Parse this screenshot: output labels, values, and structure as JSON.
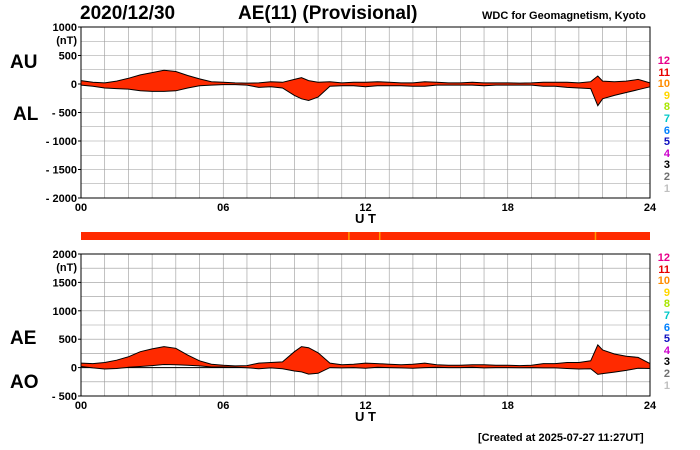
{
  "header": {
    "date": "2020/12/30",
    "title": "AE(11) (Provisional)",
    "source": "WDC for Geomagnetism, Kyoto"
  },
  "footer": {
    "created": "[Created at 2025-07-27 11:27UT]"
  },
  "panel_labels": {
    "top_upper": "AU",
    "top_lower": "AL",
    "bottom_upper": "AE",
    "bottom_lower": "AO"
  },
  "legend": {
    "labels": [
      "12",
      "11",
      "10",
      "9",
      "8",
      "7",
      "6",
      "5",
      "4",
      "3",
      "2",
      "1"
    ],
    "colors": [
      "#e8008a",
      "#e80000",
      "#ff8c00",
      "#ffd700",
      "#a8e600",
      "#00c8c8",
      "#0080ff",
      "#1010c0",
      "#cc00cc",
      "#000000",
      "#707070",
      "#c0c0c0"
    ]
  },
  "colors": {
    "fill": "#ff2a00",
    "outline": "#000000",
    "grid": "#999999",
    "status_marker": "#ff9900"
  },
  "chart_data": [
    {
      "type": "area",
      "panel": "AU/AL",
      "unit_label": "(nT)",
      "xlabel": "U T",
      "xticks": [
        "00",
        "06",
        "12",
        "18",
        "24"
      ],
      "xlim": [
        0,
        24
      ],
      "ylim": [
        -2000,
        1000
      ],
      "yticks": [
        "1000",
        "500",
        "0",
        "- 500",
        "- 1000",
        "- 1500",
        "- 2000"
      ],
      "grid": true,
      "hours": [
        0,
        0.5,
        1,
        1.5,
        2,
        2.5,
        3,
        3.5,
        4,
        4.5,
        5,
        5.5,
        6,
        6.5,
        7,
        7.5,
        8,
        8.5,
        9,
        9.3,
        9.6,
        10,
        10.5,
        11,
        11.5,
        12,
        12.5,
        13,
        13.5,
        14,
        14.5,
        15,
        15.5,
        16,
        16.5,
        17,
        17.5,
        18,
        18.5,
        19,
        19.5,
        20,
        20.5,
        21,
        21.5,
        21.8,
        22,
        22.5,
        23,
        23.5,
        24
      ],
      "series": [
        {
          "name": "AU",
          "values": [
            60,
            30,
            20,
            50,
            100,
            160,
            200,
            240,
            220,
            150,
            90,
            40,
            30,
            20,
            15,
            20,
            40,
            30,
            80,
            110,
            60,
            30,
            40,
            20,
            30,
            30,
            40,
            30,
            20,
            20,
            40,
            30,
            20,
            20,
            30,
            20,
            20,
            20,
            15,
            20,
            30,
            30,
            30,
            20,
            40,
            140,
            50,
            40,
            50,
            80,
            20
          ]
        },
        {
          "name": "AL",
          "values": [
            -20,
            -40,
            -70,
            -80,
            -90,
            -120,
            -130,
            -130,
            -120,
            -70,
            -30,
            -20,
            -10,
            -10,
            -20,
            -60,
            -50,
            -70,
            -200,
            -260,
            -290,
            -230,
            -40,
            -30,
            -30,
            -50,
            -30,
            -30,
            -30,
            -40,
            -40,
            -20,
            -20,
            -20,
            -20,
            -30,
            -20,
            -20,
            -20,
            -20,
            -40,
            -40,
            -60,
            -70,
            -80,
            -380,
            -260,
            -200,
            -150,
            -100,
            -50
          ]
        }
      ]
    },
    {
      "type": "area",
      "panel": "AE/AO",
      "unit_label": "(nT)",
      "xlabel": "U T",
      "xticks": [
        "00",
        "06",
        "12",
        "18",
        "24"
      ],
      "xlim": [
        0,
        24
      ],
      "ylim": [
        -500,
        2000
      ],
      "yticks": [
        "2000",
        "1500",
        "1000",
        "500",
        "0",
        "- 500"
      ],
      "grid": true,
      "hours": [
        0,
        0.5,
        1,
        1.5,
        2,
        2.5,
        3,
        3.5,
        4,
        4.5,
        5,
        5.5,
        6,
        6.5,
        7,
        7.5,
        8,
        8.5,
        9,
        9.3,
        9.6,
        10,
        10.5,
        11,
        11.5,
        12,
        12.5,
        13,
        13.5,
        14,
        14.5,
        15,
        15.5,
        16,
        16.5,
        17,
        17.5,
        18,
        18.5,
        19,
        19.5,
        20,
        20.5,
        21,
        21.5,
        21.8,
        22,
        22.5,
        23,
        23.5,
        24
      ],
      "series": [
        {
          "name": "AE",
          "values": [
            80,
            70,
            90,
            130,
            190,
            280,
            330,
            370,
            340,
            220,
            120,
            60,
            40,
            30,
            35,
            80,
            90,
            100,
            280,
            370,
            350,
            260,
            80,
            50,
            60,
            80,
            70,
            60,
            50,
            60,
            80,
            50,
            40,
            40,
            50,
            50,
            40,
            40,
            35,
            40,
            70,
            70,
            90,
            90,
            120,
            400,
            310,
            240,
            200,
            180,
            70
          ]
        },
        {
          "name": "AO",
          "values": [
            20,
            -5,
            -25,
            -15,
            5,
            20,
            35,
            55,
            50,
            40,
            30,
            10,
            10,
            5,
            -3,
            -20,
            -5,
            -20,
            -60,
            -75,
            -115,
            -100,
            0,
            -5,
            0,
            -10,
            5,
            0,
            -5,
            -10,
            0,
            5,
            0,
            0,
            5,
            -5,
            0,
            0,
            -3,
            0,
            -5,
            -5,
            -15,
            -25,
            -20,
            -120,
            -105,
            -80,
            -50,
            -10,
            -15
          ]
        }
      ]
    }
  ],
  "status_bar": {
    "markers_ut": [
      11.3,
      12.6,
      21.7
    ]
  }
}
